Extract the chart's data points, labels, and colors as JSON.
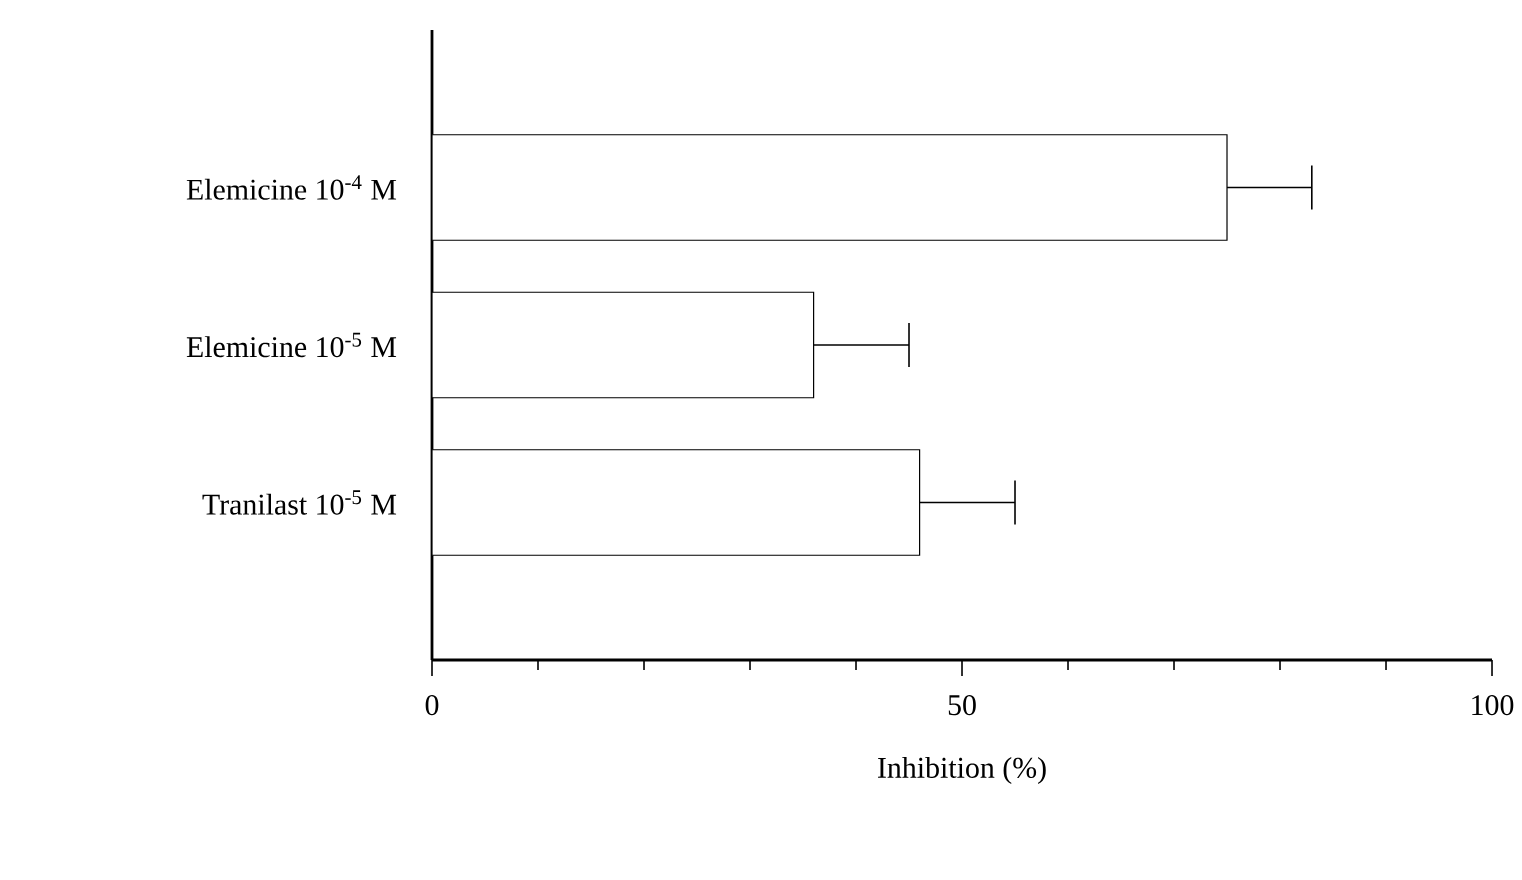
{
  "chart_data": {
    "type": "bar",
    "orientation": "horizontal",
    "categories": [
      "Elemicine 10$^{-4}$ M",
      "Elemicine 10$^{-5}$ M",
      "Tranilast 10$^{-5}$ M"
    ],
    "values": [
      75,
      36,
      46
    ],
    "errors": [
      [
        75,
        83
      ],
      [
        36,
        45
      ],
      [
        46,
        55
      ]
    ],
    "color": "#ffffff",
    "xlabel": "Inhibition (%)",
    "xlim": [
      0,
      100
    ],
    "xticks": [
      0,
      50,
      100
    ]
  }
}
